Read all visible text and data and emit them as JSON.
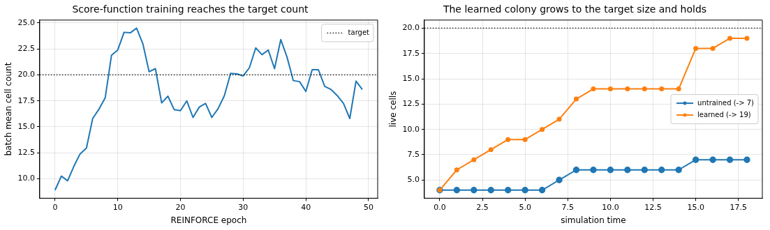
{
  "chart_data": [
    {
      "type": "line",
      "title": "Score-function training reaches the target count",
      "xlabel": "REINFORCE epoch",
      "ylabel": "batch mean cell count",
      "x": [
        0,
        1,
        2,
        3,
        4,
        5,
        6,
        7,
        8,
        9,
        10,
        11,
        12,
        13,
        14,
        15,
        16,
        17,
        18,
        19,
        20,
        21,
        22,
        23,
        24,
        25,
        26,
        27,
        28,
        29,
        30,
        31,
        32,
        33,
        34,
        35,
        36,
        37,
        38,
        39,
        40,
        41,
        42,
        43,
        44,
        45,
        46,
        47,
        48,
        49
      ],
      "series": [
        {
          "color": "#1f77b4",
          "values": [
            8.9,
            10.25,
            9.8,
            11.2,
            12.4,
            12.95,
            15.8,
            16.7,
            17.8,
            21.9,
            22.4,
            24.1,
            24.05,
            24.5,
            23.0,
            20.3,
            20.6,
            17.3,
            17.95,
            16.65,
            16.55,
            17.5,
            15.9,
            16.9,
            17.25,
            15.9,
            16.75,
            18.0,
            20.15,
            20.1,
            19.9,
            20.7,
            22.6,
            21.95,
            22.4,
            20.6,
            23.4,
            21.7,
            19.45,
            19.35,
            18.4,
            20.5,
            20.5,
            18.9,
            18.6,
            18.0,
            17.25,
            15.8,
            19.4,
            18.6
          ]
        }
      ],
      "xlim": [
        -2.45,
        51.45
      ],
      "xticks": [
        0,
        10,
        20,
        30,
        40,
        50
      ],
      "ylim": [
        8.12,
        25.28
      ],
      "yticks": [
        {
          "value": 10,
          "label": "10.0"
        },
        {
          "value": 12.5,
          "label": "12.5"
        },
        {
          "value": 15,
          "label": "15.0"
        },
        {
          "value": 17.5,
          "label": "17.5"
        },
        {
          "value": 20,
          "label": "20.0"
        },
        {
          "value": 22.5,
          "label": "22.5"
        },
        {
          "value": 25,
          "label": "25.0"
        }
      ],
      "ref_lines": [
        {
          "axis": "y",
          "value": 20,
          "label": "target",
          "color": "#000000",
          "line_style": "dotted"
        }
      ],
      "grid": true,
      "legend": "top right",
      "marker": "none",
      "line_style": "solid"
    },
    {
      "type": "line",
      "title": "The learned colony grows to the target size and holds",
      "xlabel": "simulation time",
      "ylabel": "live cells",
      "x": [
        0,
        1,
        2,
        3,
        4,
        5,
        6,
        7,
        8,
        9,
        10,
        11,
        12,
        13,
        14,
        15,
        16,
        17,
        18
      ],
      "series": [
        {
          "name": "untrained (-> 7)",
          "color": "#1f77b4",
          "values": [
            4,
            4,
            4,
            4,
            4,
            4,
            4,
            5,
            6,
            6,
            6,
            6,
            6,
            6,
            6,
            7,
            7,
            7,
            7
          ]
        },
        {
          "name": "learned (-> 19)",
          "color": "#ff7f0e",
          "values": [
            4,
            6,
            7,
            8,
            9,
            9,
            10,
            11,
            13,
            14,
            14,
            14,
            14,
            14,
            14,
            18,
            18,
            19,
            19
          ]
        }
      ],
      "xlim": [
        -0.9,
        18.9
      ],
      "xticks": [
        {
          "value": 0,
          "label": "0.0"
        },
        {
          "value": 2.5,
          "label": "2.5"
        },
        {
          "value": 5,
          "label": "5.0"
        },
        {
          "value": 7.5,
          "label": "7.5"
        },
        {
          "value": 10,
          "label": "10.0"
        },
        {
          "value": 12.5,
          "label": "12.5"
        },
        {
          "value": 15,
          "label": "15.0"
        },
        {
          "value": 17.5,
          "label": "17.5"
        }
      ],
      "ylim": [
        3.2,
        20.8
      ],
      "yticks": [
        {
          "value": 5,
          "label": "5.0"
        },
        {
          "value": 7.5,
          "label": "7.5"
        },
        {
          "value": 10,
          "label": "10.0"
        },
        {
          "value": 12.5,
          "label": "12.5"
        },
        {
          "value": 15,
          "label": "15.0"
        },
        {
          "value": 17.5,
          "label": "17.5"
        },
        {
          "value": 20,
          "label": "20.0"
        }
      ],
      "ref_lines": [
        {
          "axis": "y",
          "value": 20,
          "color": "#000000",
          "line_style": "dotted"
        }
      ],
      "grid": true,
      "legend": "right",
      "marker": "circle",
      "line_style": "solid"
    }
  ]
}
